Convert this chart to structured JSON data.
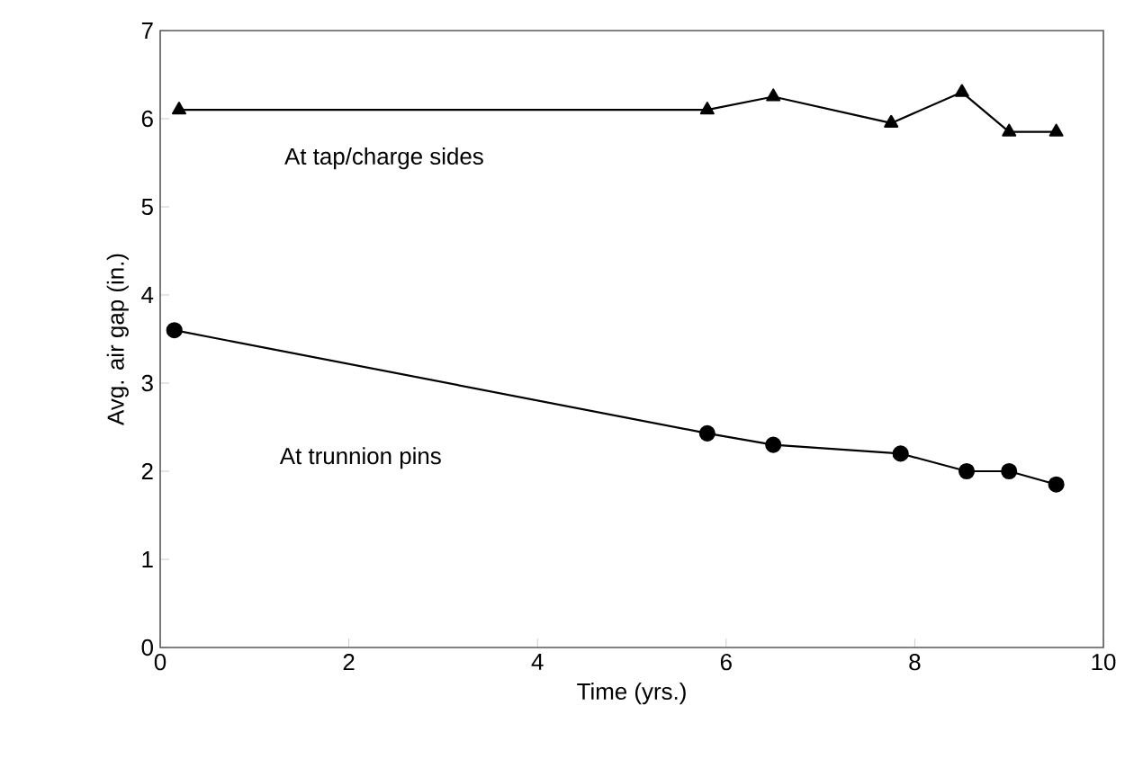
{
  "chart_data": {
    "type": "line",
    "xlabel": "Time (yrs.)",
    "ylabel": "Avg. air gap (in.)",
    "xlim": [
      0,
      10
    ],
    "xticks": [
      0,
      2,
      4,
      6,
      8,
      10
    ],
    "ylim": [
      0,
      7
    ],
    "yticks": [
      0,
      1,
      2,
      3,
      4,
      5,
      6,
      7
    ],
    "grid": false,
    "legend": false,
    "line_style": "solid",
    "series": [
      {
        "name": "At tap/charge sides",
        "color": "#000000",
        "marker": "triangle",
        "x": [
          0.2,
          5.8,
          6.5,
          7.75,
          8.5,
          9.0,
          9.5
        ],
        "values": [
          6.1,
          6.1,
          6.25,
          5.95,
          6.3,
          5.85,
          5.85
        ]
      },
      {
        "name": "At trunnion pins",
        "color": "#000000",
        "marker": "circle",
        "x": [
          0.15,
          5.8,
          6.5,
          7.85,
          8.55,
          9.0,
          9.5
        ],
        "values": [
          3.6,
          2.43,
          2.3,
          2.2,
          2.0,
          2.0,
          1.85
        ]
      }
    ]
  }
}
